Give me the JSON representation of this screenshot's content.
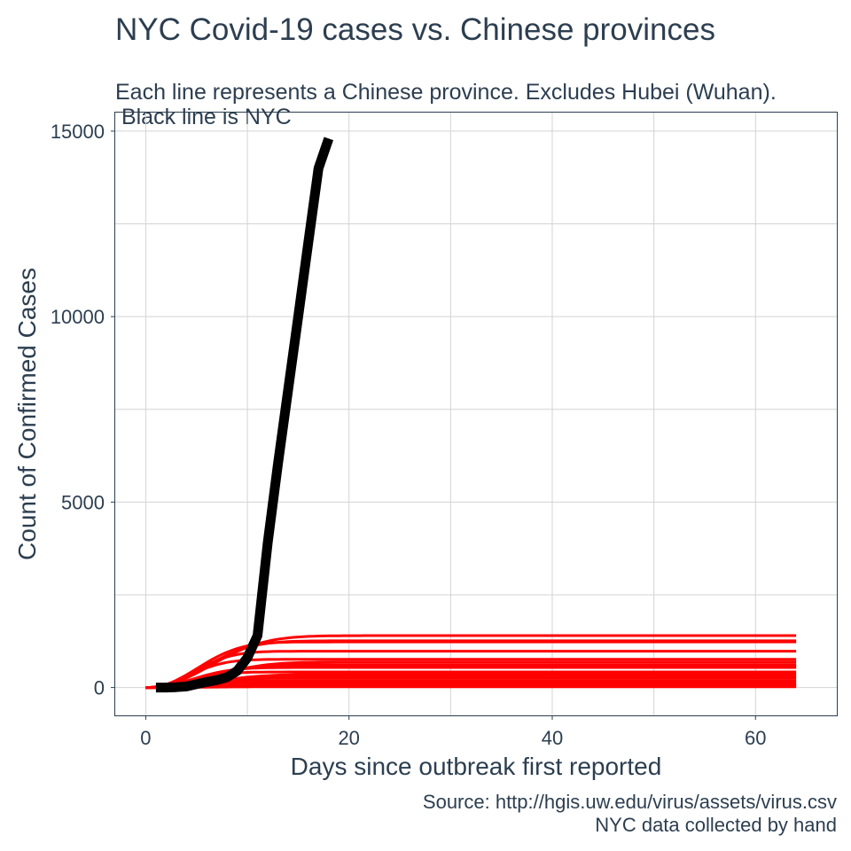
{
  "chart_data": {
    "type": "line",
    "title": "NYC Covid-19 cases vs. Chinese provinces",
    "subtitle_lines": [
      "Each line represents a Chinese province. Excludes Hubei (Wuhan).",
      " Black line is NYC"
    ],
    "xlabel": "Days since outbreak first reported",
    "ylabel": "Count of Confirmed Cases",
    "caption_lines": [
      "Source: http://hgis.uw.edu/virus/assets/virus.csv",
      "NYC data collected by hand"
    ],
    "xlim": [
      -3,
      68
    ],
    "ylim": [
      -750,
      15500
    ],
    "x_ticks": [
      0,
      20,
      40,
      60
    ],
    "y_ticks": [
      0,
      5000,
      10000,
      15000
    ],
    "grid": true,
    "legend": "none",
    "nyc_color": "#000000",
    "province_color": "#ff0000",
    "nyc_series": {
      "x": [
        1,
        2,
        3,
        4,
        5,
        6,
        7,
        8,
        9,
        10,
        11,
        12,
        13,
        14,
        15,
        16,
        17,
        18
      ],
      "y": [
        0,
        0,
        10,
        30,
        90,
        150,
        200,
        280,
        450,
        800,
        1400,
        3900,
        6000,
        8000,
        10000,
        12000,
        14000,
        14800
      ]
    },
    "province_finals": [
      1400,
      1260,
      1230,
      980,
      760,
      690,
      620,
      570,
      540,
      420,
      360,
      300,
      250,
      180,
      130,
      80,
      50,
      20
    ]
  }
}
